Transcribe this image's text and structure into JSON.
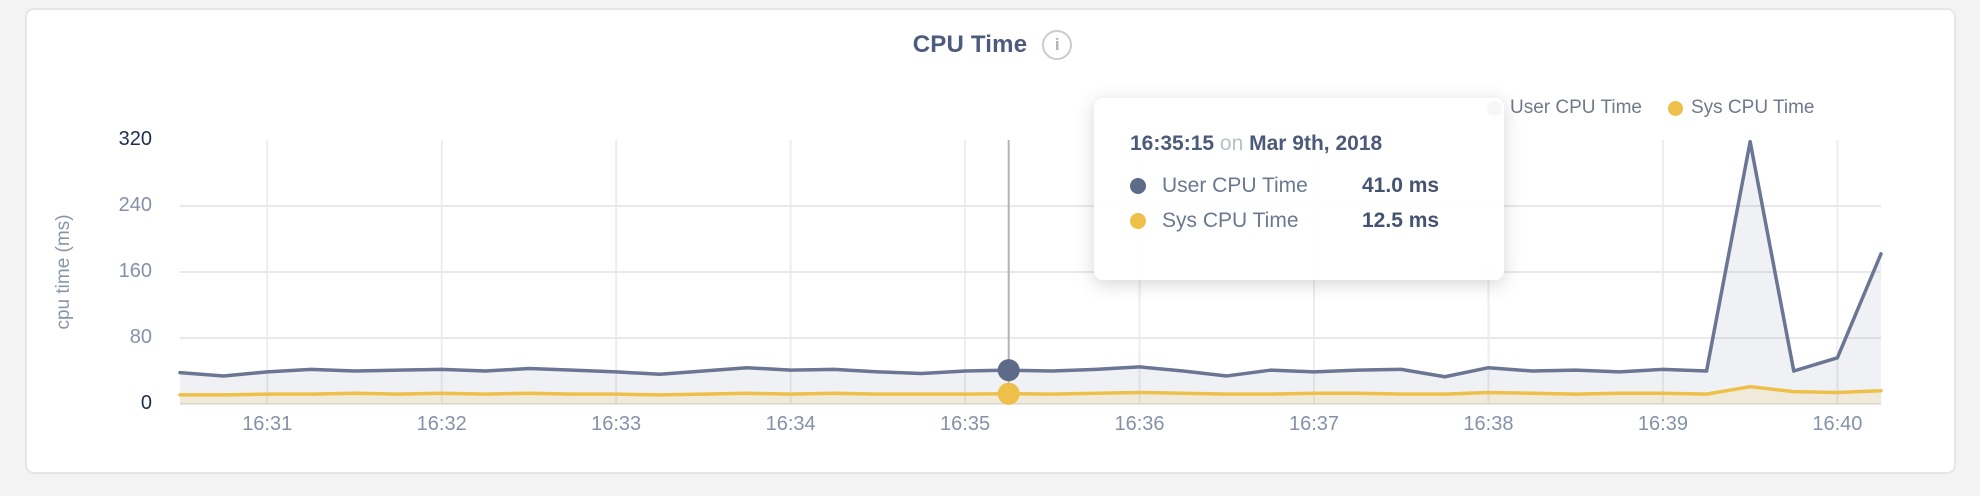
{
  "header": {
    "title": "CPU Time",
    "info_glyph": "i"
  },
  "legend": {
    "items": [
      {
        "label": "User CPU Time",
        "color": "#5d6a89"
      },
      {
        "label": "Sys CPU Time",
        "color": "#eec04a"
      }
    ]
  },
  "tooltip": {
    "time": "16:35:15",
    "conjunction": "on",
    "date": "Mar 9th, 2018",
    "rows": [
      {
        "label": "User CPU Time",
        "value": "41.0 ms"
      },
      {
        "label": "Sys CPU Time",
        "value": "12.5 ms"
      }
    ]
  },
  "chart_data": {
    "type": "area",
    "title": "CPU Time",
    "xlabel": "",
    "ylabel": "cpu time (ms)",
    "grid": true,
    "legend_position": "top-right",
    "ylim": [
      0,
      320
    ],
    "y_ticks": [
      320,
      240,
      160,
      80,
      0
    ],
    "y_gridlines": [
      240,
      160,
      80
    ],
    "x_ticks": [
      "16:31",
      "16:32",
      "16:33",
      "16:34",
      "16:35",
      "16:36",
      "16:37",
      "16:38",
      "16:39",
      "16:40"
    ],
    "x_range": [
      "16:30:30",
      "16:40:15"
    ],
    "times": [
      "16:30:30",
      "16:30:45",
      "16:31:00",
      "16:31:15",
      "16:31:30",
      "16:31:45",
      "16:32:00",
      "16:32:15",
      "16:32:30",
      "16:32:45",
      "16:33:00",
      "16:33:15",
      "16:33:30",
      "16:33:45",
      "16:34:00",
      "16:34:15",
      "16:34:30",
      "16:34:45",
      "16:35:00",
      "16:35:15",
      "16:35:30",
      "16:35:45",
      "16:36:00",
      "16:36:15",
      "16:36:30",
      "16:36:45",
      "16:37:00",
      "16:37:15",
      "16:37:30",
      "16:37:45",
      "16:38:00",
      "16:38:15",
      "16:38:30",
      "16:38:45",
      "16:39:00",
      "16:39:15",
      "16:39:30",
      "16:39:45",
      "16:40:00",
      "16:40:15"
    ],
    "series": [
      {
        "name": "User CPU Time",
        "color": "#6a7693",
        "fill": "rgba(106,118,147,0.10)",
        "values": [
          38,
          34,
          39,
          42,
          40,
          41,
          42,
          40,
          43,
          41,
          39,
          36,
          40,
          44,
          41,
          42,
          39,
          37,
          40,
          41,
          40,
          42,
          45,
          40,
          34,
          41,
          39,
          41,
          42,
          33,
          44,
          40,
          41,
          39,
          42,
          40,
          318,
          40,
          56,
          182
        ]
      },
      {
        "name": "Sys CPU Time",
        "color": "#eec04a",
        "fill": "rgba(238,192,74,0.14)",
        "values": [
          11,
          11,
          12,
          12,
          13,
          12,
          13,
          12,
          13,
          12,
          12,
          11,
          12,
          13,
          12,
          13,
          12,
          12,
          12,
          12.5,
          12,
          13,
          14,
          13,
          12,
          12,
          13,
          13,
          12,
          12,
          14,
          13,
          12,
          13,
          13,
          12,
          21,
          15,
          14,
          16
        ]
      }
    ],
    "highlight": {
      "time": "16:35:15",
      "values": [
        41.0,
        12.5
      ]
    }
  }
}
